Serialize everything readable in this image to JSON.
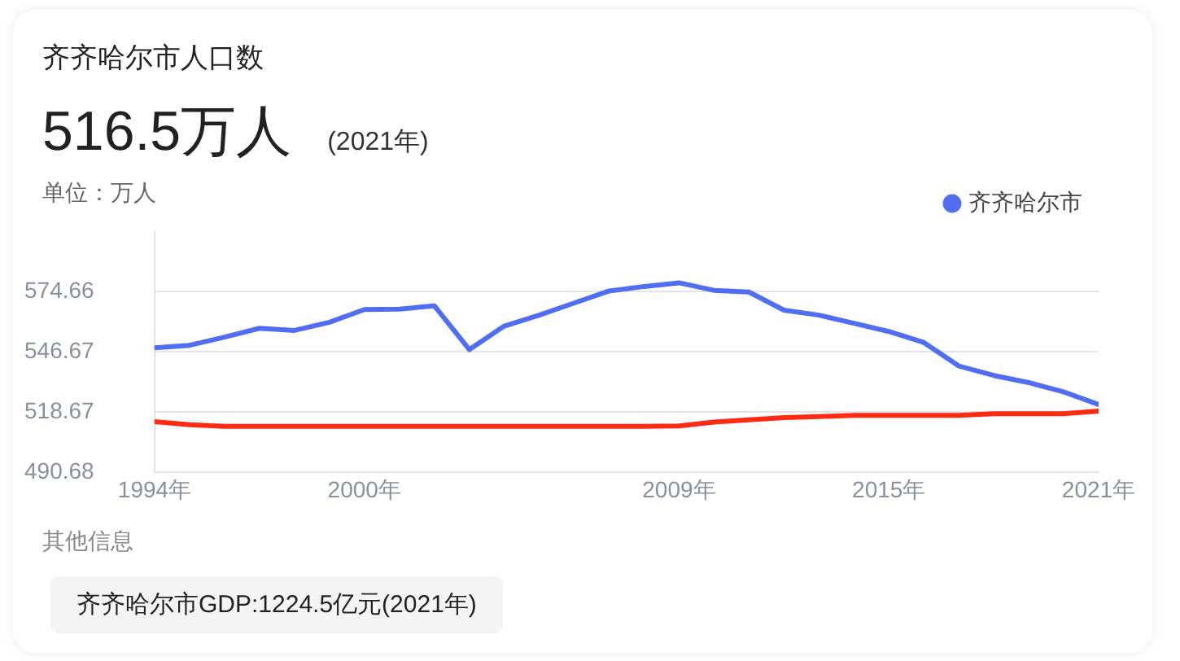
{
  "chart_data": {
    "type": "line",
    "title": "齐齐哈尔市人口数",
    "subtitle": "516.5万人",
    "ylabel": "单位：万人",
    "annotations": [
      "(2021年)",
      "其他信息",
      "齐齐哈尔市GDP:1224.5亿元(2021年)"
    ],
    "x": [
      1994,
      1995,
      1996,
      1997,
      1998,
      1999,
      2000,
      2001,
      2002,
      2003,
      2004,
      2005,
      2006,
      2007,
      2008,
      2009,
      2010,
      2011,
      2012,
      2013,
      2014,
      2015,
      2016,
      2017,
      2018,
      2019,
      2020,
      2021
    ],
    "series": [
      {
        "name": "齐齐哈尔市",
        "color": "#4f6ef2",
        "values": [
          548.5,
          549.7,
          553.5,
          557.6,
          556.6,
          560.4,
          566.3,
          566.5,
          568.0,
          547.7,
          558.6,
          563.7,
          569.3,
          574.9,
          577.0,
          578.7,
          575.2,
          574.4,
          566.0,
          563.7,
          559.9,
          556.1,
          551.0,
          540.1,
          535.7,
          532.4,
          528.1,
          522.2
        ]
      },
      {
        "color": "#ff2a12",
        "values": [
          514.3,
          512.8,
          512.1,
          512.1,
          512.1,
          512.1,
          512.1,
          512.1,
          512.1,
          512.1,
          512.1,
          512.1,
          512.1,
          512.1,
          512.1,
          512.3,
          514.1,
          515.1,
          516.1,
          516.6,
          517.2,
          517.2,
          517.2,
          517.2,
          517.9,
          517.9,
          517.9,
          519.2
        ]
      }
    ],
    "xlim": [
      1994,
      2021
    ],
    "xticks": [
      {
        "value": 1994,
        "label": "1994年"
      },
      {
        "value": 2000,
        "label": "2000年"
      },
      {
        "value": 2009,
        "label": "2009年"
      },
      {
        "value": 2015,
        "label": "2015年"
      },
      {
        "value": 2021,
        "label": "2021年"
      }
    ],
    "ylim": [
      490.68,
      602.65
    ],
    "yticks": [
      490.68,
      518.67,
      546.67,
      574.66
    ],
    "grid": "y",
    "legend": "top right",
    "marker": "none",
    "line_style": "solid"
  }
}
